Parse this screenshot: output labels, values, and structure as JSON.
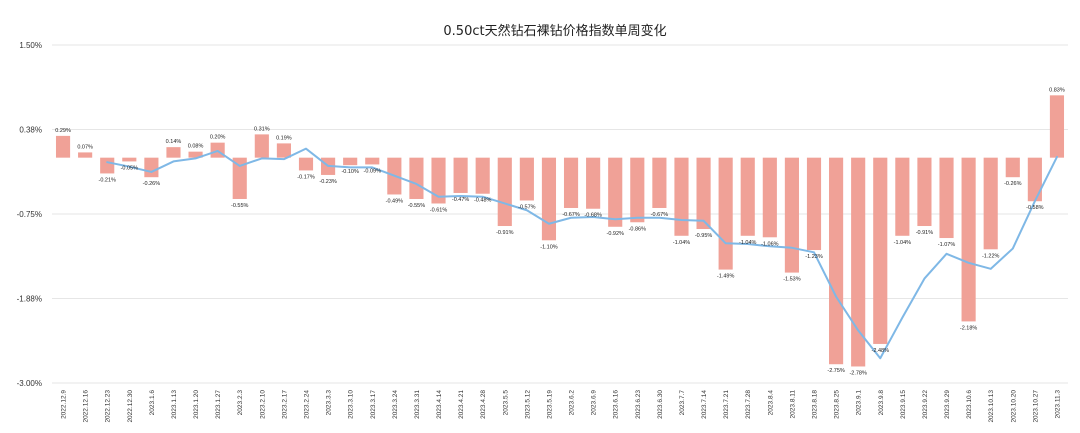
{
  "chart_data": {
    "type": "bar",
    "title": "0.50ct天然钻石裸钻价格指数单周变化",
    "ylim": [
      -3.0,
      1.5
    ],
    "yticks": [
      "1.50%",
      "0.38%",
      "-0.75%",
      "-1.88%",
      "-3.00%"
    ],
    "ytick_values": [
      1.5,
      0.375,
      -0.75,
      -1.875,
      -3.0
    ],
    "grid": true,
    "x_tick_labels": [
      "2022.12.9",
      "2022.12.16",
      "2022.12.23",
      "2022.12.30",
      "2023.1.6",
      "2023.1.13",
      "2023.1.20",
      "2023.1.27",
      "2023.2.3",
      "2023.2.10",
      "2023.2.17",
      "2023.2.24",
      "2023.3.3",
      "2023.3.10",
      "2023.3.17",
      "2023.3.24",
      "2023.3.31",
      "2023.4.14",
      "2023.4.21",
      "2023.4.28",
      "2023.5.5",
      "2023.5.12",
      "2023.5.19",
      "2023.6.2",
      "2023.6.9",
      "2023.6.16",
      "2023.6.23",
      "2023.6.30",
      "2023.7.7",
      "2023.7.14",
      "2023.7.21",
      "2023.7.28",
      "2023.8.4",
      "2023.8.11",
      "2023.8.18",
      "2023.8.25",
      "2023.9.1",
      "2023.9.8",
      "2023.9.15",
      "2023.9.22",
      "2023.9.29",
      "2023.10.6",
      "2023.10.13",
      "2023.10.20",
      "2023.10.27",
      "2023.11.3"
    ],
    "series": [
      {
        "type": "bar",
        "color": "#f0a197",
        "values": [
          0.29,
          0.07,
          -0.21,
          -0.05,
          -0.26,
          0.14,
          0.08,
          0.2,
          -0.55,
          0.31,
          0.19,
          -0.17,
          -0.23,
          -0.1,
          -0.09,
          -0.49,
          -0.55,
          -0.61,
          -0.47,
          -0.48,
          -0.91,
          -0.57,
          -1.1,
          -0.67,
          -0.68,
          -0.92,
          -0.86,
          -0.67,
          -1.04,
          -0.95,
          -1.49,
          -1.04,
          -1.06,
          -1.53,
          -1.23,
          -2.75,
          -2.78,
          -2.48,
          -1.04,
          -0.91,
          -1.07,
          -2.18,
          -1.22,
          -0.26,
          -0.58,
          0.83
        ],
        "data_labels": [
          "0.29%",
          "0.07%",
          "-0.21%",
          "-0.05%",
          "-0.26%",
          "0.14%",
          "0.08%",
          "0.20%",
          "-0.55%",
          "0.31%",
          "0.19%",
          "-0.17%",
          "-0.23%",
          "-0.10%",
          "-0.09%",
          "-0.49%",
          "-0.55%",
          "-0.61%",
          "-0.47%",
          "-0.48%",
          "-0.91%",
          "-0.57%",
          "-1.10%",
          "-0.67%",
          "-0.68%",
          "-0.92%",
          "-0.86%",
          "-0.67%",
          "-1.04%",
          "-0.95%",
          "-1.49%",
          "-1.04%",
          "-1.06%",
          "-1.53%",
          "-1.23%",
          "-2.75%",
          "-2.78%",
          "-2.48%",
          "-1.04%",
          "-0.91%",
          "-1.07%",
          "-2.18%",
          "-1.22%",
          "-0.26%",
          "-0.58%",
          "0.83%"
        ]
      },
      {
        "type": "line",
        "color": "#7fb8e6",
        "values": [
          null,
          null,
          -0.06,
          -0.12,
          -0.19,
          -0.05,
          -0.01,
          0.09,
          -0.11,
          -0.01,
          -0.02,
          0.12,
          -0.11,
          -0.13,
          -0.13,
          -0.24,
          -0.35,
          -0.52,
          -0.51,
          -0.52,
          -0.61,
          -0.7,
          -0.88,
          -0.8,
          -0.79,
          -0.82,
          -0.8,
          -0.8,
          -0.83,
          -0.84,
          -1.14,
          -1.15,
          -1.18,
          -1.2,
          -1.26,
          -1.85,
          -2.3,
          -2.67,
          -2.13,
          -1.61,
          -1.28,
          -1.4,
          -1.48,
          -1.21,
          -0.58,
          0.01
        ]
      }
    ]
  }
}
